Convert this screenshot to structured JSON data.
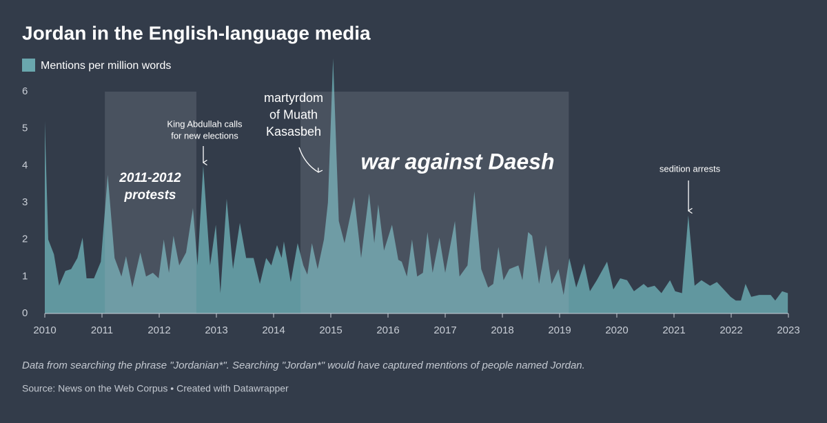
{
  "chart_data": {
    "type": "area",
    "title": "Jordan in the English-language media",
    "note": "Data from searching the phrase \"Jordanian*\". Searching \"Jordan*\" would have captured mentions of people named Jordan.",
    "source": "Source: News on the Web Corpus • Created with Datawrapper",
    "x": [
      2010.0,
      2010.06,
      2010.16,
      2010.25,
      2010.36,
      2010.46,
      2010.57,
      2010.66,
      2010.73,
      2010.86,
      2010.98,
      2011.1,
      2011.22,
      2011.34,
      2011.42,
      2011.53,
      2011.67,
      2011.77,
      2011.89,
      2011.99,
      2012.08,
      2012.17,
      2012.25,
      2012.35,
      2012.47,
      2012.59,
      2012.67,
      2012.77,
      2012.89,
      2012.99,
      2013.07,
      2013.18,
      2013.29,
      2013.41,
      2013.52,
      2013.65,
      2013.76,
      2013.87,
      2013.96,
      2014.06,
      2014.14,
      2014.18,
      2014.3,
      2014.42,
      2014.52,
      2014.59,
      2014.67,
      2014.77,
      2014.88,
      2014.95,
      2015.04,
      2015.14,
      2015.24,
      2015.41,
      2015.53,
      2015.67,
      2015.76,
      2015.83,
      2015.93,
      2016.07,
      2016.18,
      2016.24,
      2016.33,
      2016.42,
      2016.51,
      2016.61,
      2016.69,
      2016.78,
      2016.9,
      2017.0,
      2017.17,
      2017.25,
      2017.39,
      2017.51,
      2017.63,
      2017.75,
      2017.84,
      2017.93,
      2018.02,
      2018.12,
      2018.28,
      2018.35,
      2018.45,
      2018.52,
      2018.64,
      2018.76,
      2018.86,
      2018.98,
      2019.07,
      2019.17,
      2019.29,
      2019.43,
      2019.53,
      2019.65,
      2019.83,
      2019.94,
      2020.06,
      2020.18,
      2020.3,
      2020.47,
      2020.54,
      2020.66,
      2020.78,
      2020.93,
      2021.02,
      2021.14,
      2021.25,
      2021.36,
      2021.48,
      2021.63,
      2021.75,
      2021.87,
      2021.99,
      2022.08,
      2022.17,
      2022.25,
      2022.35,
      2022.49,
      2022.69,
      2022.77,
      2022.89,
      2022.99
    ],
    "series": [
      {
        "name": "Mentions per million words",
        "color": "#6aa7ae",
        "values": [
          5.2,
          2.0,
          1.6,
          0.75,
          1.15,
          1.2,
          1.5,
          2.05,
          0.95,
          0.95,
          1.4,
          3.75,
          1.5,
          1.0,
          1.55,
          0.7,
          1.65,
          1.0,
          1.1,
          0.95,
          2.0,
          1.1,
          2.1,
          1.3,
          1.65,
          2.85,
          1.3,
          4.0,
          1.3,
          2.4,
          0.55,
          3.1,
          1.2,
          2.45,
          1.5,
          1.5,
          0.8,
          1.5,
          1.3,
          1.85,
          1.5,
          1.95,
          0.85,
          1.9,
          1.3,
          1.05,
          1.9,
          1.2,
          2.0,
          3.0,
          6.9,
          2.5,
          1.9,
          3.15,
          1.5,
          3.25,
          1.9,
          2.95,
          1.7,
          2.4,
          1.45,
          1.4,
          1.0,
          2.0,
          1.0,
          1.1,
          2.2,
          1.1,
          2.05,
          1.1,
          2.5,
          1.0,
          1.3,
          3.3,
          1.2,
          0.7,
          0.8,
          1.8,
          0.9,
          1.2,
          1.3,
          0.9,
          2.2,
          2.1,
          0.8,
          1.85,
          0.8,
          1.2,
          0.5,
          1.5,
          0.7,
          1.35,
          0.6,
          0.9,
          1.4,
          0.65,
          0.95,
          0.9,
          0.6,
          0.8,
          0.7,
          0.75,
          0.55,
          0.9,
          0.6,
          0.55,
          2.65,
          0.75,
          0.9,
          0.75,
          0.85,
          0.65,
          0.45,
          0.35,
          0.35,
          0.8,
          0.45,
          0.5,
          0.5,
          0.35,
          0.6,
          0.55
        ]
      }
    ],
    "xlim": [
      2010,
      2023
    ],
    "xticks": [
      2010,
      2011,
      2012,
      2013,
      2014,
      2015,
      2016,
      2017,
      2018,
      2019,
      2020,
      2021,
      2022,
      2023
    ],
    "ylim": [
      0,
      6
    ],
    "yticks": [
      0,
      1,
      2,
      3,
      4,
      5,
      6
    ],
    "grid": false,
    "highlights": [
      {
        "lines": [
          "2011-2012",
          "protests"
        ],
        "x": [
          2011.05,
          2012.65
        ]
      },
      {
        "lines": [
          "war against Daesh"
        ],
        "x": [
          2014.47,
          2019.16
        ]
      }
    ],
    "annotations": [
      {
        "lines": [
          "King Abdullah calls",
          "for new elections"
        ]
      },
      {
        "lines": [
          "martyrdom",
          "of Muath",
          "Kasasbeh"
        ]
      },
      {
        "lines": [
          "sedition arrests"
        ]
      }
    ]
  }
}
